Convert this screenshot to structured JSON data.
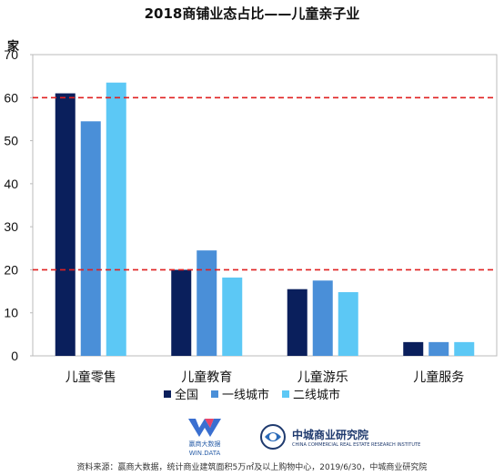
{
  "title": "2018商铺业态占比——儿童亲子业",
  "unit_label": "家",
  "legend": [
    {
      "name": "全国",
      "color": "#0a1f5c"
    },
    {
      "name": "一线城市",
      "color": "#4a8fd8"
    },
    {
      "name": "二线城市",
      "color": "#5cc8f5"
    }
  ],
  "reference_line_color": "#e02020",
  "logos": {
    "win_data_text": "赢商大数据",
    "win_data_sub": "WIN.DATA",
    "zhongcheng_text": "中城商业研究院",
    "zhongcheng_sub": "CHINA COMMERCIAL REAL ESTATE RESEARCH INSTITUTE"
  },
  "source_note": "资料来源：赢商大数据，统计商业建筑面积5万㎡及以上购物中心，2019/6/30，中城商业研究院",
  "chart_data": {
    "type": "bar",
    "title": "2018商铺业态占比——儿童亲子业",
    "ylabel": "家",
    "xlabel": "",
    "ylim": [
      0,
      70
    ],
    "yticks": [
      0,
      10,
      20,
      30,
      40,
      50,
      60,
      70
    ],
    "grid": false,
    "categories": [
      "儿童零售",
      "儿童教育",
      "儿童游乐",
      "儿童服务"
    ],
    "series": [
      {
        "name": "全国",
        "values": [
          61,
          20,
          15.5,
          3.2
        ]
      },
      {
        "name": "一线城市",
        "values": [
          54.5,
          24.5,
          17.5,
          3.2
        ]
      },
      {
        "name": "二线城市",
        "values": [
          63.5,
          18.2,
          14.8,
          3.2
        ]
      }
    ],
    "reference_lines": [
      60,
      20
    ],
    "legend_position": "bottom"
  }
}
